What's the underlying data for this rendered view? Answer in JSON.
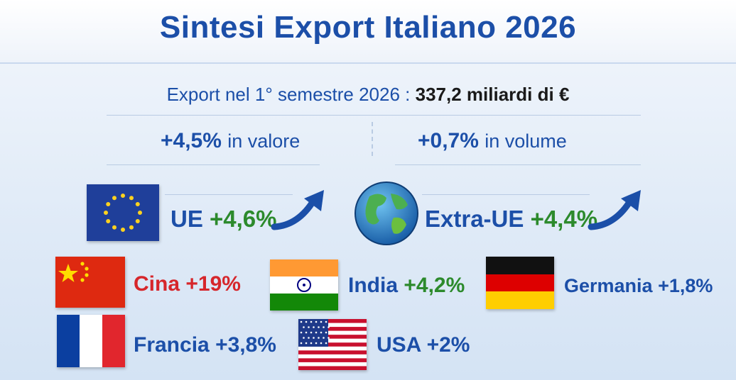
{
  "title": "Sintesi Export Italiano 2026",
  "summary": {
    "label": "Export nel 1° semestre 2026 :",
    "value": "337,2 miliardi di €"
  },
  "metrics": {
    "valore_value": "+4,5%",
    "valore_label": "in valore",
    "volume_value": "+0,7%",
    "volume_label": "in volume"
  },
  "areas": {
    "ue_name": "UE",
    "ue_change": "+4,6%",
    "extra_name": "Extra-UE",
    "extra_change": "+4,4%"
  },
  "countries": [
    {
      "name": "Cina",
      "change": "+19%",
      "flag": "china-flag-icon",
      "color": "#d6262b"
    },
    {
      "name": "India",
      "change": "+4,2%",
      "flag": "india-flag-icon",
      "color": "#2c8a2c"
    },
    {
      "name": "Germania",
      "change": "+1,8%",
      "flag": "germany-flag-icon",
      "color": "#1c4fa8"
    },
    {
      "name": "Francia",
      "change": "+3,8%",
      "flag": "france-flag-icon",
      "color": "#1c4fa8"
    },
    {
      "name": "USA",
      "change": "+2%",
      "flag": "usa-flag-icon",
      "color": "#1c4fa8"
    }
  ],
  "colors": {
    "brand_blue": "#1c4fa8",
    "growth_green": "#2c8a2c",
    "highlight_red": "#d6262b"
  }
}
